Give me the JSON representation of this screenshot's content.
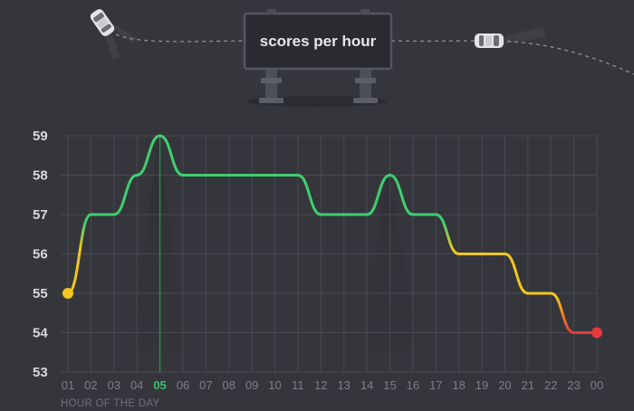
{
  "billboard": {
    "title": "scores per hour"
  },
  "chart_data": {
    "type": "line",
    "title": "scores per hour",
    "xlabel": "HOUR OF THE DAY",
    "ylabel": "",
    "categories": [
      "01",
      "02",
      "03",
      "04",
      "05",
      "06",
      "07",
      "08",
      "09",
      "10",
      "11",
      "12",
      "13",
      "14",
      "15",
      "16",
      "17",
      "18",
      "19",
      "20",
      "21",
      "22",
      "23",
      "00"
    ],
    "highlight_category": "05",
    "series": [
      {
        "values": [
          55,
          57,
          57,
          58,
          59,
          58,
          58,
          58,
          58,
          58,
          58,
          57,
          57,
          57,
          58,
          57,
          57,
          56,
          56,
          56,
          55,
          55,
          54,
          54
        ]
      }
    ],
    "ylim": [
      53,
      59
    ],
    "yticks": [
      53,
      54,
      55,
      56,
      57,
      58,
      59
    ],
    "grid": true,
    "legend": "none",
    "colors": {
      "high": "#3fcf6e",
      "mid": "#f2c61f",
      "low": "#e5393a",
      "grid": "#484a51",
      "highlight_line": "#2f8f55"
    }
  }
}
